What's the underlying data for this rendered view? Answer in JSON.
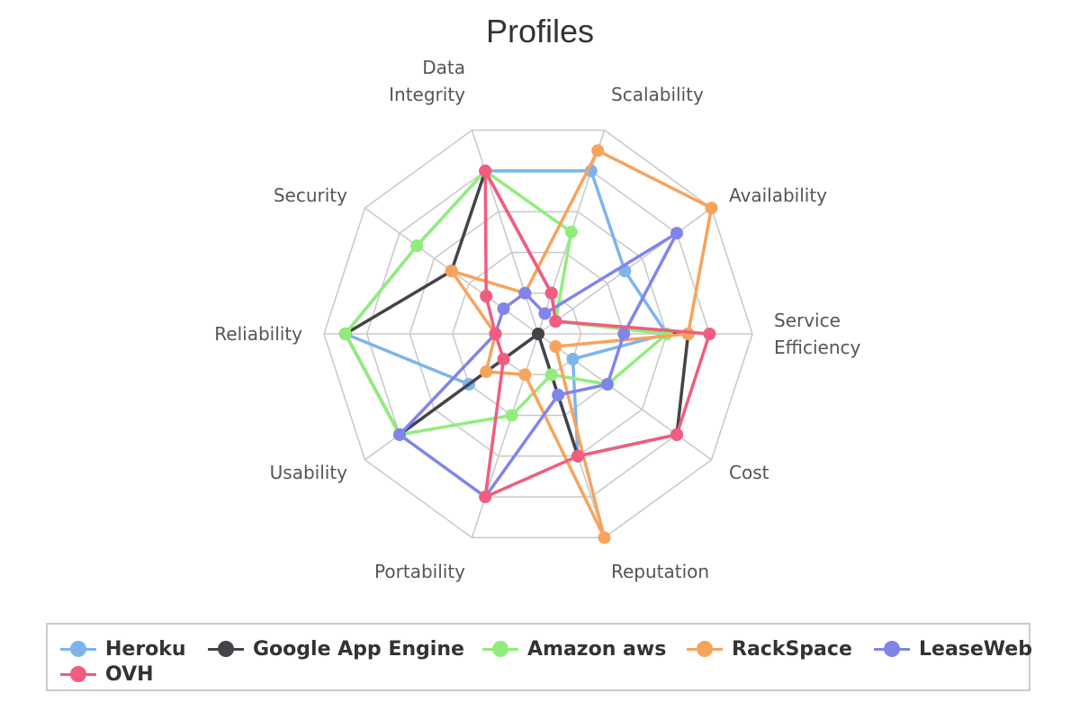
{
  "chart_data": {
    "type": "radar",
    "title": "Profiles",
    "axes": [
      "Scalability",
      "Availability",
      "Service Efficiency",
      "Cost",
      "Reputation",
      "Portability",
      "Usability",
      "Reliability",
      "Security",
      "Data Integrity"
    ],
    "axis_label_lines": [
      [
        "Scalability"
      ],
      [
        "Availability"
      ],
      [
        "Service",
        "Efficiency"
      ],
      [
        "Cost"
      ],
      [
        "Reputation"
      ],
      [
        "Portability"
      ],
      [
        "Usability"
      ],
      [
        "Reliability"
      ],
      [
        "Security"
      ],
      [
        "Data",
        "Integrity"
      ]
    ],
    "rmax": 10,
    "grid_levels": [
      2,
      4,
      6,
      8,
      10
    ],
    "legend_position": "bottom",
    "series": [
      {
        "name": "Heroku",
        "color": "#7cb5ec",
        "values": [
          8,
          5,
          6,
          2,
          6,
          0,
          4,
          9,
          7,
          8
        ]
      },
      {
        "name": "Google App Engine",
        "color": "#434348",
        "values": [
          2,
          1,
          7,
          8,
          6,
          0,
          8,
          9,
          5,
          8
        ]
      },
      {
        "name": "Amazon aws",
        "color": "#90ed7d",
        "values": [
          5,
          1,
          6,
          4,
          2,
          4,
          8,
          9,
          7,
          8
        ]
      },
      {
        "name": "RackSpace",
        "color": "#f7a35c",
        "values": [
          9,
          10,
          7,
          1,
          10,
          2,
          3,
          2,
          5,
          2
        ]
      },
      {
        "name": "LeaseWeb",
        "color": "#8085e9",
        "values": [
          1,
          8,
          4,
          4,
          3,
          8,
          8,
          2,
          2,
          2
        ]
      },
      {
        "name": "OVH",
        "color": "#f15c80",
        "values": [
          2,
          1,
          8,
          8,
          6,
          8,
          2,
          2,
          3,
          8
        ]
      }
    ]
  }
}
